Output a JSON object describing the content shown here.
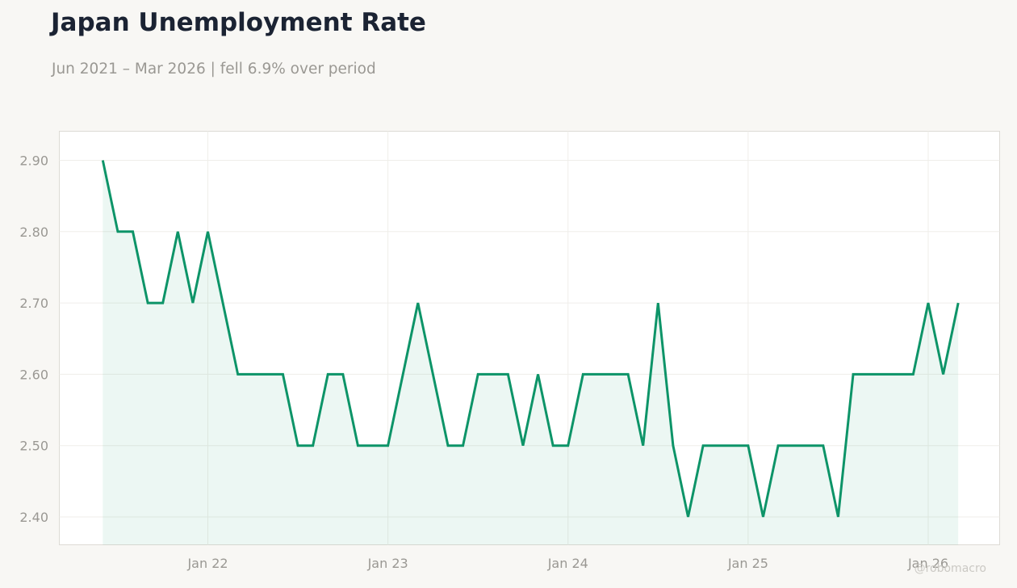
{
  "header": {
    "title": "Japan Unemployment Rate",
    "subtitle": "Jun 2021 – Mar 2026 | fell 6.9% over period"
  },
  "watermark": "@robomacro",
  "colors": {
    "line": "#0d9468",
    "fill": "#0d9468",
    "grid": "#efeeea",
    "frame": "#dddbd5",
    "tick_text": "#9a9893"
  },
  "chart_data": {
    "type": "area",
    "title": "Japan Unemployment Rate",
    "subtitle": "Jun 2021 – Mar 2026 | fell 6.9% over period",
    "xlabel": "",
    "ylabel": "",
    "x_range": [
      "2021-06",
      "2026-03"
    ],
    "ylim": [
      2.36,
      2.94
    ],
    "yticks": [
      2.4,
      2.5,
      2.6,
      2.7,
      2.8,
      2.9
    ],
    "ytick_labels": [
      "2.40",
      "2.50",
      "2.60",
      "2.70",
      "2.80",
      "2.90"
    ],
    "xticks": [
      "2022-01",
      "2023-01",
      "2024-01",
      "2025-01",
      "2026-01"
    ],
    "xtick_labels": [
      "Jan 22",
      "Jan 23",
      "Jan 24",
      "Jan 25",
      "Jan 26"
    ],
    "grid": true,
    "legend": "none",
    "series": [
      {
        "x": [
          "2021-06",
          "2021-07",
          "2021-08",
          "2021-09",
          "2021-10",
          "2021-11",
          "2021-12",
          "2022-01",
          "2022-02",
          "2022-03",
          "2022-04",
          "2022-05",
          "2022-06",
          "2022-07",
          "2022-08",
          "2022-09",
          "2022-10",
          "2022-11",
          "2022-12",
          "2023-01",
          "2023-02",
          "2023-03",
          "2023-04",
          "2023-05",
          "2023-06",
          "2023-07",
          "2023-08",
          "2023-09",
          "2023-10",
          "2023-11",
          "2023-12",
          "2024-01",
          "2024-02",
          "2024-03",
          "2024-04",
          "2024-05",
          "2024-06",
          "2024-07",
          "2024-08",
          "2024-09",
          "2024-10",
          "2024-11",
          "2024-12",
          "2025-01",
          "2025-02",
          "2025-03",
          "2025-04",
          "2025-05",
          "2025-06",
          "2025-07",
          "2025-08",
          "2025-09",
          "2025-10",
          "2025-11",
          "2025-12",
          "2026-01",
          "2026-02",
          "2026-03"
        ],
        "values": [
          2.9,
          2.8,
          2.8,
          2.7,
          2.7,
          2.8,
          2.7,
          2.8,
          2.7,
          2.6,
          2.6,
          2.6,
          2.6,
          2.5,
          2.5,
          2.6,
          2.6,
          2.5,
          2.5,
          2.5,
          2.6,
          2.7,
          2.6,
          2.5,
          2.5,
          2.6,
          2.6,
          2.6,
          2.5,
          2.6,
          2.5,
          2.5,
          2.6,
          2.6,
          2.6,
          2.6,
          2.5,
          2.7,
          2.5,
          2.4,
          2.5,
          2.5,
          2.5,
          2.5,
          2.4,
          2.5,
          2.5,
          2.5,
          2.5,
          2.4,
          2.6,
          2.6,
          2.6,
          2.6,
          2.6,
          2.7,
          2.6,
          2.7
        ]
      }
    ]
  }
}
